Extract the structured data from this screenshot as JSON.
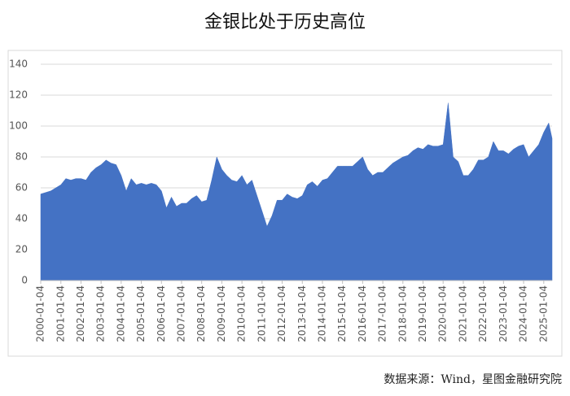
{
  "chart_data": {
    "type": "area",
    "title": "金银比处于历史高位",
    "source": "数据来源：Wind，星图金融研究院",
    "x": [
      "2000-01-04",
      "2000-04-04",
      "2000-07-04",
      "2000-10-04",
      "2001-01-04",
      "2001-04-04",
      "2001-07-04",
      "2001-10-04",
      "2002-01-04",
      "2002-04-04",
      "2002-07-04",
      "2002-10-04",
      "2003-01-04",
      "2003-04-04",
      "2003-07-04",
      "2003-10-04",
      "2004-01-04",
      "2004-04-04",
      "2004-07-04",
      "2004-10-04",
      "2005-01-04",
      "2005-04-04",
      "2005-07-04",
      "2005-10-04",
      "2006-01-04",
      "2006-04-04",
      "2006-07-04",
      "2006-10-04",
      "2007-01-04",
      "2007-04-04",
      "2007-07-04",
      "2007-10-04",
      "2008-01-04",
      "2008-04-04",
      "2008-07-04",
      "2008-10-04",
      "2009-01-04",
      "2009-04-04",
      "2009-07-04",
      "2009-10-04",
      "2010-01-04",
      "2010-04-04",
      "2010-07-04",
      "2010-10-04",
      "2011-01-04",
      "2011-04-04",
      "2011-07-04",
      "2011-10-04",
      "2012-01-04",
      "2012-04-04",
      "2012-07-04",
      "2012-10-04",
      "2013-01-04",
      "2013-04-04",
      "2013-07-04",
      "2013-10-04",
      "2014-01-04",
      "2014-04-04",
      "2014-07-04",
      "2014-10-04",
      "2015-01-04",
      "2015-04-04",
      "2015-07-04",
      "2015-10-04",
      "2016-01-04",
      "2016-04-04",
      "2016-07-04",
      "2016-10-04",
      "2017-01-04",
      "2017-04-04",
      "2017-07-04",
      "2017-10-04",
      "2018-01-04",
      "2018-04-04",
      "2018-07-04",
      "2018-10-04",
      "2019-01-04",
      "2019-04-04",
      "2019-07-04",
      "2019-10-04",
      "2020-01-04",
      "2020-04-04",
      "2020-07-04",
      "2020-10-04",
      "2021-01-04",
      "2021-04-04",
      "2021-07-04",
      "2021-10-04",
      "2022-01-04",
      "2022-04-04",
      "2022-07-04",
      "2022-10-04",
      "2023-01-04",
      "2023-04-04",
      "2023-07-04",
      "2023-10-04",
      "2024-01-04",
      "2024-04-04",
      "2024-07-04",
      "2024-10-04",
      "2025-01-04",
      "2025-04-04",
      "2025-06-04"
    ],
    "series": [
      {
        "color": "#4472c4",
        "values": [
          56,
          57,
          58,
          60,
          62,
          66,
          65,
          66,
          66,
          65,
          70,
          73,
          75,
          78,
          76,
          75,
          68,
          58,
          66,
          62,
          63,
          62,
          63,
          62,
          58,
          47,
          54,
          48,
          50,
          50,
          53,
          55,
          51,
          52,
          65,
          80,
          72,
          68,
          65,
          64,
          68,
          62,
          65,
          55,
          45,
          35,
          42,
          52,
          52,
          56,
          54,
          53,
          55,
          62,
          64,
          61,
          65,
          66,
          70,
          74,
          74,
          74,
          74,
          77,
          80,
          72,
          68,
          70,
          70,
          73,
          76,
          78,
          80,
          81,
          84,
          86,
          85,
          88,
          87,
          87,
          88,
          115,
          80,
          77,
          68,
          68,
          72,
          78,
          78,
          80,
          90,
          84,
          84,
          82,
          85,
          87,
          88,
          80,
          84,
          88,
          96,
          102,
          92
        ]
      }
    ],
    "xlim": [
      "2000-01-04",
      "2025-06-04"
    ],
    "xticks": [
      "2000-01-04",
      "2001-01-04",
      "2002-01-04",
      "2003-01-04",
      "2004-01-04",
      "2005-01-04",
      "2006-01-04",
      "2007-01-04",
      "2008-01-04",
      "2009-01-04",
      "2010-01-04",
      "2011-01-04",
      "2012-01-04",
      "2013-01-04",
      "2014-01-04",
      "2015-01-04",
      "2016-01-04",
      "2017-01-04",
      "2018-01-04",
      "2019-01-04",
      "2020-01-04",
      "2021-01-04",
      "2022-01-04",
      "2023-01-04",
      "2024-01-04",
      "2025-01-04"
    ],
    "ylim": [
      0,
      140
    ],
    "yticks": [
      0,
      20,
      40,
      60,
      80,
      100,
      120,
      140
    ],
    "grid": true
  }
}
